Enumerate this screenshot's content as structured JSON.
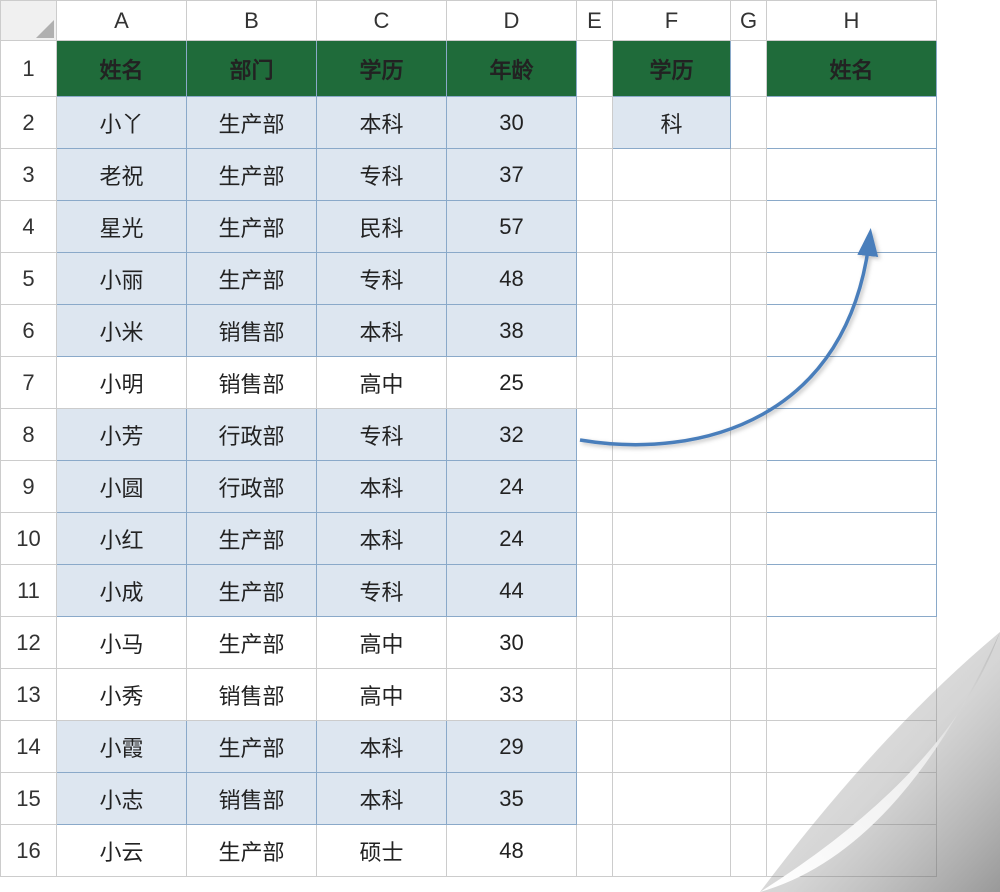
{
  "layout": {
    "row_header_width": 56,
    "row_heights": {
      "colhdr": 40,
      "header": 56,
      "data": 52
    },
    "columns": [
      {
        "letter": "A",
        "width": 130
      },
      {
        "letter": "B",
        "width": 130
      },
      {
        "letter": "C",
        "width": 130
      },
      {
        "letter": "D",
        "width": 130
      },
      {
        "letter": "E",
        "width": 36
      },
      {
        "letter": "F",
        "width": 118
      },
      {
        "letter": "G",
        "width": 36
      },
      {
        "letter": "H",
        "width": 170
      }
    ],
    "num_rows": 16
  },
  "colors": {
    "header_bg": "#1f6b3a",
    "header_fg": "#ffffff",
    "data_fill": "#dde6f0",
    "data_border": "#8aa9c9",
    "grid_border": "#cccccc",
    "arrow": "#4a7ebb"
  },
  "headers_main": [
    "姓名",
    "部门",
    "学历",
    "年龄"
  ],
  "header_F": "学历",
  "header_H": "姓名",
  "value_F2": "科",
  "rows": [
    {
      "name": "小丫",
      "dept": "生产部",
      "edu": "本科",
      "age": "30",
      "hl": true
    },
    {
      "name": "老祝",
      "dept": "生产部",
      "edu": "专科",
      "age": "37",
      "hl": true
    },
    {
      "name": "星光",
      "dept": "生产部",
      "edu": "民科",
      "age": "57",
      "hl": true
    },
    {
      "name": "小丽",
      "dept": "生产部",
      "edu": "专科",
      "age": "48",
      "hl": true
    },
    {
      "name": "小米",
      "dept": "销售部",
      "edu": "本科",
      "age": "38",
      "hl": true
    },
    {
      "name": "小明",
      "dept": "销售部",
      "edu": "高中",
      "age": "25",
      "hl": false
    },
    {
      "name": "小芳",
      "dept": "行政部",
      "edu": "专科",
      "age": "32",
      "hl": true
    },
    {
      "name": "小圆",
      "dept": "行政部",
      "edu": "本科",
      "age": "24",
      "hl": true
    },
    {
      "name": "小红",
      "dept": "生产部",
      "edu": "本科",
      "age": "24",
      "hl": true
    },
    {
      "name": "小成",
      "dept": "生产部",
      "edu": "专科",
      "age": "44",
      "hl": true
    },
    {
      "name": "小马",
      "dept": "生产部",
      "edu": "高中",
      "age": "30",
      "hl": false
    },
    {
      "name": "小秀",
      "dept": "销售部",
      "edu": "高中",
      "age": "33",
      "hl": false
    },
    {
      "name": "小霞",
      "dept": "生产部",
      "edu": "本科",
      "age": "29",
      "hl": true
    },
    {
      "name": "小志",
      "dept": "销售部",
      "edu": "本科",
      "age": "35",
      "hl": true
    },
    {
      "name": "小云",
      "dept": "生产部",
      "edu": "硕士",
      "age": "48",
      "hl": false
    }
  ],
  "bordered_H_rows": [
    2,
    3,
    4,
    5,
    6,
    7,
    8,
    9,
    10,
    11
  ]
}
